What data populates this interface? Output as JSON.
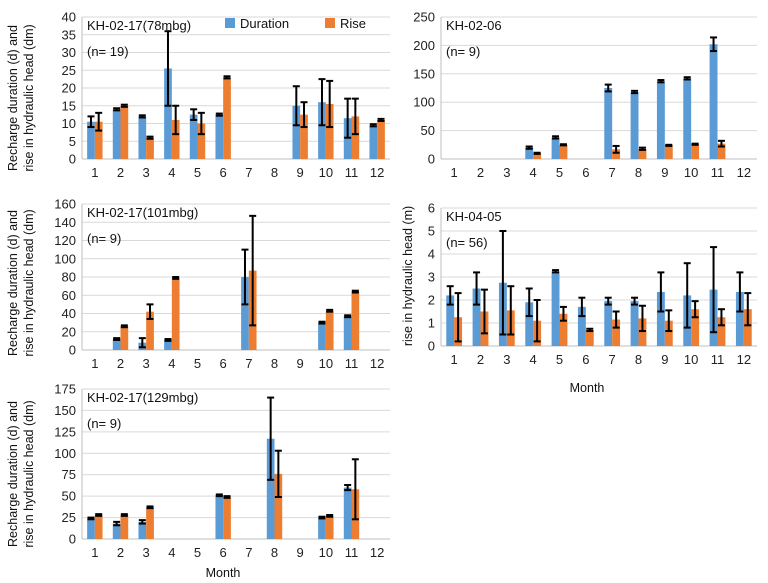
{
  "legend": {
    "duration": "Duration",
    "rise": "Rise"
  },
  "colors": {
    "duration": "#5B9BD5",
    "rise": "#ED7D31",
    "grid": "#D9D9D9",
    "axis": "#BFBFBF",
    "error": "#000000"
  },
  "shared_labels": {
    "ylabel_line1": "Recharge duration (d) and",
    "ylabel_line2": "rise in hydraulic head (dm)",
    "ylabel_kh0405": "rise in hydraulic head (m)",
    "xlabel": "Month"
  },
  "chart_data": [
    {
      "id": "kh0217-78",
      "type": "bar",
      "title": "KH-02-17(78mbg)",
      "subtitle": "(n= 19)",
      "categories": [
        "1",
        "2",
        "3",
        "4",
        "5",
        "6",
        "7",
        "8",
        "9",
        "10",
        "11",
        "12"
      ],
      "ylim": [
        0,
        40
      ],
      "yticks": [
        0,
        5,
        10,
        15,
        20,
        25,
        30,
        35,
        40
      ],
      "ylabel": "Recharge duration (d) and rise in hydraulic head (dm)",
      "xlabel": "",
      "series": [
        {
          "name": "Duration",
          "values": [
            10.5,
            14,
            12,
            25.5,
            12.5,
            12.5,
            null,
            null,
            15,
            16,
            11.5,
            9.5
          ],
          "errors": [
            1.5,
            0.3,
            0.3,
            10.5,
            1.5,
            0.3,
            null,
            null,
            5.5,
            6.5,
            5.5,
            0.3
          ]
        },
        {
          "name": "Rise",
          "values": [
            10.5,
            15,
            6,
            11,
            10,
            23,
            null,
            null,
            12.5,
            15.5,
            12,
            11
          ],
          "errors": [
            2.5,
            0.3,
            0.3,
            4,
            3,
            0.3,
            null,
            null,
            3.5,
            6.5,
            5,
            0.3
          ]
        }
      ]
    },
    {
      "id": "kh0206",
      "type": "bar",
      "title": "KH-02-06",
      "subtitle": "(n= 9)",
      "categories": [
        "1",
        "2",
        "3",
        "4",
        "5",
        "6",
        "7",
        "8",
        "9",
        "10",
        "11",
        "12"
      ],
      "ylim": [
        0,
        250
      ],
      "yticks": [
        0,
        50,
        100,
        150,
        200,
        250
      ],
      "ylabel": "",
      "xlabel": "",
      "series": [
        {
          "name": "Duration",
          "values": [
            null,
            null,
            null,
            20,
            38,
            null,
            125,
            118,
            137,
            142,
            202,
            null
          ],
          "errors": [
            null,
            null,
            null,
            2,
            2,
            null,
            6,
            2,
            2,
            2,
            12,
            null
          ]
        },
        {
          "name": "Rise",
          "values": [
            null,
            null,
            null,
            10,
            25,
            null,
            17,
            18,
            24,
            26,
            27,
            null
          ],
          "errors": [
            null,
            null,
            null,
            1,
            1,
            null,
            6,
            2,
            1,
            1,
            5,
            null
          ]
        }
      ]
    },
    {
      "id": "kh0217-101",
      "type": "bar",
      "title": "KH-02-17(101mbg)",
      "subtitle": "(n= 9)",
      "categories": [
        "1",
        "2",
        "3",
        "4",
        "5",
        "6",
        "7",
        "8",
        "9",
        "10",
        "11",
        "12"
      ],
      "ylim": [
        0,
        160
      ],
      "yticks": [
        0,
        20,
        40,
        60,
        80,
        100,
        120,
        140,
        160
      ],
      "ylabel": "Recharge duration (d) and rise in hydraulic head (dm)",
      "xlabel": "",
      "series": [
        {
          "name": "Duration",
          "values": [
            null,
            12,
            8,
            11,
            null,
            null,
            80,
            null,
            null,
            30,
            37,
            null
          ],
          "errors": [
            null,
            1,
            5,
            1,
            null,
            null,
            30,
            null,
            null,
            1,
            1,
            null
          ]
        },
        {
          "name": "Rise",
          "values": [
            null,
            26,
            42,
            79,
            null,
            null,
            87,
            null,
            null,
            43,
            64,
            null
          ],
          "errors": [
            null,
            1,
            8,
            1,
            null,
            null,
            60,
            null,
            null,
            1,
            1,
            null
          ]
        }
      ]
    },
    {
      "id": "kh0405",
      "type": "bar",
      "title": "KH-04-05",
      "subtitle": "(n= 56)",
      "categories": [
        "1",
        "2",
        "3",
        "4",
        "5",
        "6",
        "7",
        "8",
        "9",
        "10",
        "11",
        "12"
      ],
      "ylim": [
        0,
        6
      ],
      "yticks": [
        0,
        1,
        2,
        3,
        4,
        5,
        6
      ],
      "ylabel": "rise in hydraulic head (m)",
      "xlabel": "Month",
      "series": [
        {
          "name": "Duration",
          "values": [
            2.2,
            2.5,
            2.75,
            1.9,
            3.25,
            1.7,
            1.95,
            1.95,
            2.35,
            2.2,
            2.45,
            2.35
          ],
          "errors": [
            0.4,
            0.7,
            2.25,
            0.6,
            0.05,
            0.4,
            0.15,
            0.15,
            0.85,
            1.4,
            1.85,
            0.85
          ]
        },
        {
          "name": "Rise",
          "values": [
            1.25,
            1.5,
            1.55,
            1.1,
            1.4,
            0.7,
            1.15,
            1.2,
            1.1,
            1.6,
            1.25,
            1.6
          ],
          "errors": [
            1.05,
            0.95,
            1.05,
            0.9,
            0.3,
            0.05,
            0.35,
            0.55,
            0.45,
            0.35,
            0.35,
            0.7
          ]
        }
      ]
    },
    {
      "id": "kh0217-129",
      "type": "bar",
      "title": "KH-02-17(129mbg)",
      "subtitle": "(n= 9)",
      "categories": [
        "1",
        "2",
        "3",
        "4",
        "5",
        "6",
        "7",
        "8",
        "9",
        "10",
        "11",
        "12"
      ],
      "ylim": [
        0,
        175
      ],
      "yticks": [
        0,
        25,
        50,
        75,
        100,
        125,
        150,
        175
      ],
      "ylabel": "Recharge duration (d) and rise in hydraulic head (dm)",
      "xlabel": "Month",
      "series": [
        {
          "name": "Duration",
          "values": [
            24,
            18,
            20,
            null,
            null,
            51,
            null,
            117,
            null,
            25,
            60,
            null
          ],
          "errors": [
            1,
            2,
            2,
            null,
            null,
            1,
            null,
            48,
            null,
            1,
            3,
            null
          ]
        },
        {
          "name": "Rise",
          "values": [
            28,
            28,
            37,
            null,
            null,
            49,
            null,
            76,
            null,
            27,
            58,
            null
          ],
          "errors": [
            1,
            1,
            1,
            null,
            null,
            1,
            null,
            27,
            null,
            1,
            35,
            null
          ]
        }
      ]
    }
  ]
}
